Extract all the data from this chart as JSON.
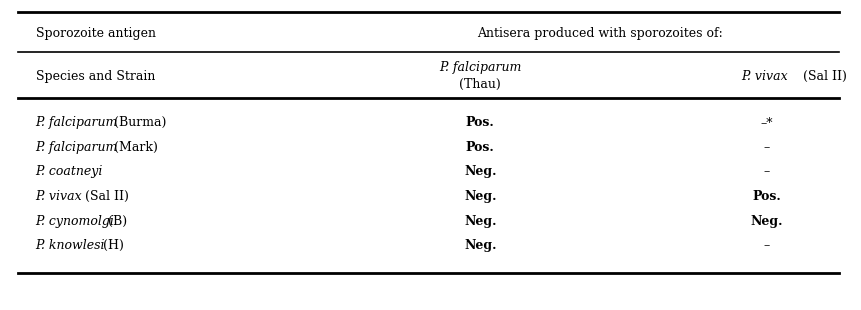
{
  "header_row1_col1": "Sporozoite antigen",
  "header_row1_col2": "Antisera produced with sporozoites of:",
  "header_row2_col1": "Species and Strain",
  "header_row2_col2_italic": "P. falciparum",
  "header_row2_col2_normal": "(Thau)",
  "header_row2_col3_italic": "P. vivax",
  "header_row2_col3_normal": " (Sal II)",
  "rows": [
    [
      "P. falciparum (Burma)",
      "Pos.",
      "–*"
    ],
    [
      "P. falciparum (Mark)",
      "Pos.",
      "–"
    ],
    [
      "P. coatneyi",
      "Neg.",
      "–"
    ],
    [
      "P. vivax (Sal II)",
      "Neg.",
      "Pos."
    ],
    [
      "P. cynomolgi (B)",
      "Neg.",
      "Neg."
    ],
    [
      "P. knowlesi (H)",
      "Neg.",
      "–"
    ]
  ],
  "italic_species": [
    "P. falciparum",
    "P. coatneyi",
    "P. vivax",
    "P. cynomolgi",
    "P. knowlesi"
  ],
  "bg_color": "#ffffff",
  "text_color": "#000000",
  "line_color": "#000000"
}
